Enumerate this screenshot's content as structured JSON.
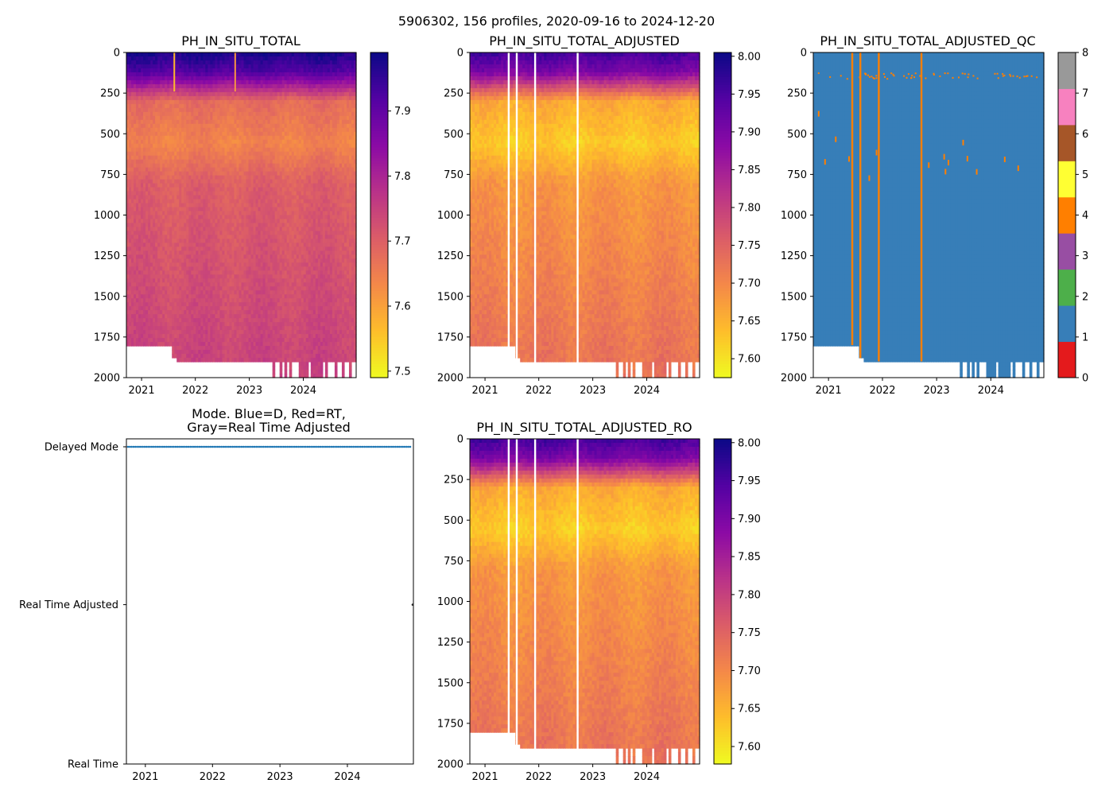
{
  "figure_title": "5906302, 156 profiles, 2020-09-16 to 2024-12-20",
  "chart_data": [
    {
      "id": "raw",
      "type": "heatmap",
      "title": "PH_IN_SITU_TOTAL",
      "ylim": [
        2000,
        0
      ],
      "yticks": [
        "0",
        "250",
        "500",
        "750",
        "1000",
        "1250",
        "1500",
        "1750",
        "2000"
      ],
      "xticks": [
        "2021",
        "2022",
        "2023",
        "2024"
      ],
      "colormap": "plasma",
      "colorbar": {
        "min": 7.49,
        "max": 7.99,
        "ticks": [
          "7.5",
          "7.6",
          "7.7",
          "7.8",
          "7.9"
        ]
      }
    },
    {
      "id": "adjusted",
      "type": "heatmap",
      "title": "PH_IN_SITU_TOTAL_ADJUSTED",
      "ylim": [
        2000,
        0
      ],
      "yticks": [
        "0",
        "250",
        "500",
        "750",
        "1000",
        "1250",
        "1500",
        "1750",
        "2000"
      ],
      "xticks": [
        "2021",
        "2022",
        "2023",
        "2024"
      ],
      "colormap": "plasma",
      "colorbar": {
        "min": 7.575,
        "max": 8.005,
        "ticks": [
          "7.60",
          "7.65",
          "7.70",
          "7.75",
          "7.80",
          "7.85",
          "7.90",
          "7.95",
          "8.00"
        ]
      }
    },
    {
      "id": "qc",
      "type": "heatmap",
      "title": "PH_IN_SITU_TOTAL_ADJUSTED_QC",
      "ylim": [
        2000,
        0
      ],
      "yticks": [
        "0",
        "250",
        "500",
        "750",
        "1000",
        "1250",
        "1500",
        "1750",
        "2000"
      ],
      "xticks": [
        "2021",
        "2022",
        "2023",
        "2024"
      ],
      "colormap": "qc_flags",
      "colorbar": {
        "min": 0,
        "max": 8,
        "ticks": [
          "0",
          "1",
          "2",
          "3",
          "4",
          "5",
          "6",
          "7",
          "8"
        ]
      },
      "qc_colors": [
        "#e41a1c",
        "#377eb8",
        "#4daf4a",
        "#984ea3",
        "#ff7f00",
        "#ffff33",
        "#a65628",
        "#f781bf",
        "#999999"
      ]
    },
    {
      "id": "mode",
      "type": "scatter",
      "title": "Mode. Blue=D, Red=RT,",
      "title2": "Gray=Real Time Adjusted",
      "categories": [
        "Real Time",
        "Real Time Adjusted",
        "Delayed Mode"
      ],
      "xticks": [
        "2021",
        "2022",
        "2023",
        "2024"
      ],
      "series": [
        {
          "name": "Delayed Mode",
          "color": "#1f77b4",
          "profiles": 155
        },
        {
          "name": "Real Time Adjusted",
          "color": "#222222",
          "profiles": 1
        }
      ]
    },
    {
      "id": "ro",
      "type": "heatmap",
      "title": "PH_IN_SITU_TOTAL_ADJUSTED_RO",
      "ylim": [
        2000,
        0
      ],
      "yticks": [
        "0",
        "250",
        "500",
        "750",
        "1000",
        "1250",
        "1500",
        "1750",
        "2000"
      ],
      "xticks": [
        "2021",
        "2022",
        "2023",
        "2024"
      ],
      "colormap": "plasma",
      "colorbar": {
        "min": 7.577,
        "max": 8.005,
        "ticks": [
          "7.60",
          "7.65",
          "7.70",
          "7.75",
          "7.80",
          "7.85",
          "7.90",
          "7.95",
          "8.00"
        ]
      }
    }
  ]
}
